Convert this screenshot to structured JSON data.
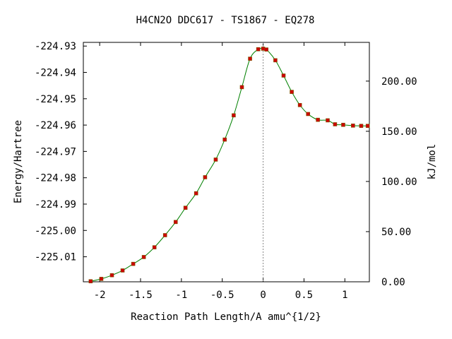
{
  "chart_data": {
    "type": "line",
    "title": "H4CN2O   DDC617 - TS1867 - EQ278",
    "xlabel": "Reaction Path Length/A amu^{1/2}",
    "ylabel": "Energy/Hartree",
    "y2label": "kJ/mol",
    "xlim": [
      -2.2,
      1.3
    ],
    "ylim": [
      -225.0195,
      -224.9286
    ],
    "y2lim": [
      0,
      238.6
    ],
    "xticks": [
      -2,
      -1.5,
      -1,
      -0.5,
      0,
      0.5,
      1
    ],
    "xtick_labels": [
      "-2",
      "-1.5",
      "-1",
      "-0.5",
      "0",
      "0.5",
      "1"
    ],
    "yticks": [
      -224.93,
      -224.94,
      -224.95,
      -224.96,
      -224.97,
      -224.98,
      -224.99,
      -225.0,
      -225.01
    ],
    "ytick_labels": [
      "-224.93",
      "-224.94",
      "-224.95",
      "-224.96",
      "-224.97",
      "-224.98",
      "-224.99",
      "-225.00",
      "-225.01"
    ],
    "y2ticks": [
      0,
      50,
      100,
      150,
      200
    ],
    "y2tick_labels": [
      "0.00",
      "50.00",
      "100.00",
      "150.00",
      "200.00"
    ],
    "ts_marker_x": 0,
    "grid": false,
    "colors": {
      "line": "#008000",
      "marker": "#cc0000",
      "ts_line": "#888888"
    },
    "series": [
      {
        "x": [
          -2.11,
          -1.98,
          -1.85,
          -1.72,
          -1.59,
          -1.46,
          -1.33,
          -1.2,
          -1.07,
          -0.95,
          -0.82,
          -0.71,
          -0.58,
          -0.47,
          -0.36,
          -0.26,
          -0.16,
          -0.06,
          0.0,
          0.04,
          0.15,
          0.25,
          0.35,
          0.45,
          0.55,
          0.67,
          0.79,
          0.88,
          0.98,
          1.1,
          1.2,
          1.28
        ],
        "y": [
          -225.0193,
          -225.0184,
          -225.017,
          -225.0152,
          -225.0127,
          -225.0101,
          -225.0064,
          -225.0018,
          -224.9968,
          -224.9914,
          -224.9859,
          -224.9798,
          -224.9731,
          -224.9655,
          -224.9563,
          -224.9456,
          -224.9348,
          -224.9312,
          -224.931,
          -224.9313,
          -224.9354,
          -224.9412,
          -224.9474,
          -224.9524,
          -224.9558,
          -224.958,
          -224.9582,
          -224.9597,
          -224.9599,
          -224.9602,
          -224.9603,
          -224.9603
        ]
      }
    ]
  }
}
